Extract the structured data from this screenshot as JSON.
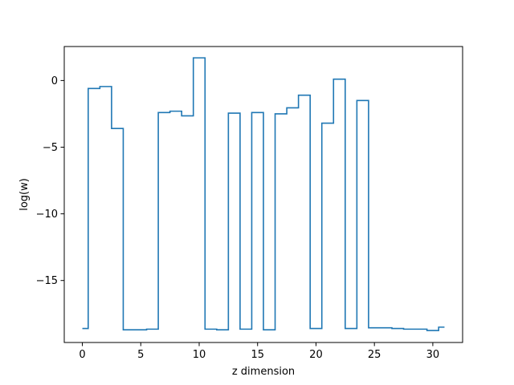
{
  "chart_data": {
    "type": "line",
    "drawstyle": "steps-mid",
    "title": "",
    "xlabel": "z dimension",
    "ylabel": "log(w)",
    "xlim": [
      -1.55,
      32.55
    ],
    "ylim": [
      -19.65,
      2.55
    ],
    "xticks": [
      0,
      5,
      10,
      15,
      20,
      25,
      30
    ],
    "yticks": [
      -15,
      -10,
      -5,
      0
    ],
    "ytick_labels": [
      "−15",
      "−10",
      "−5",
      "0"
    ],
    "grid": false,
    "legend": "none",
    "color": "#1f77b4",
    "series": [
      {
        "x": [
          0,
          1,
          2,
          3,
          4,
          5,
          6,
          7,
          8,
          9,
          10,
          11,
          12,
          13,
          14,
          15,
          16,
          17,
          18,
          19,
          20,
          21,
          22,
          23,
          24,
          25,
          26,
          27,
          28,
          29,
          30,
          31
        ],
        "y": [
          -18.6,
          -0.6,
          -0.45,
          -3.6,
          -18.7,
          -18.7,
          -18.65,
          -2.4,
          -2.3,
          -2.65,
          1.7,
          -18.65,
          -18.7,
          -2.45,
          -18.65,
          -2.4,
          -18.7,
          -2.5,
          -2.05,
          -1.1,
          -18.6,
          -3.2,
          0.1,
          -18.6,
          -1.5,
          -18.55,
          -18.55,
          -18.6,
          -18.65,
          -18.65,
          -18.75,
          -18.5
        ]
      }
    ]
  }
}
